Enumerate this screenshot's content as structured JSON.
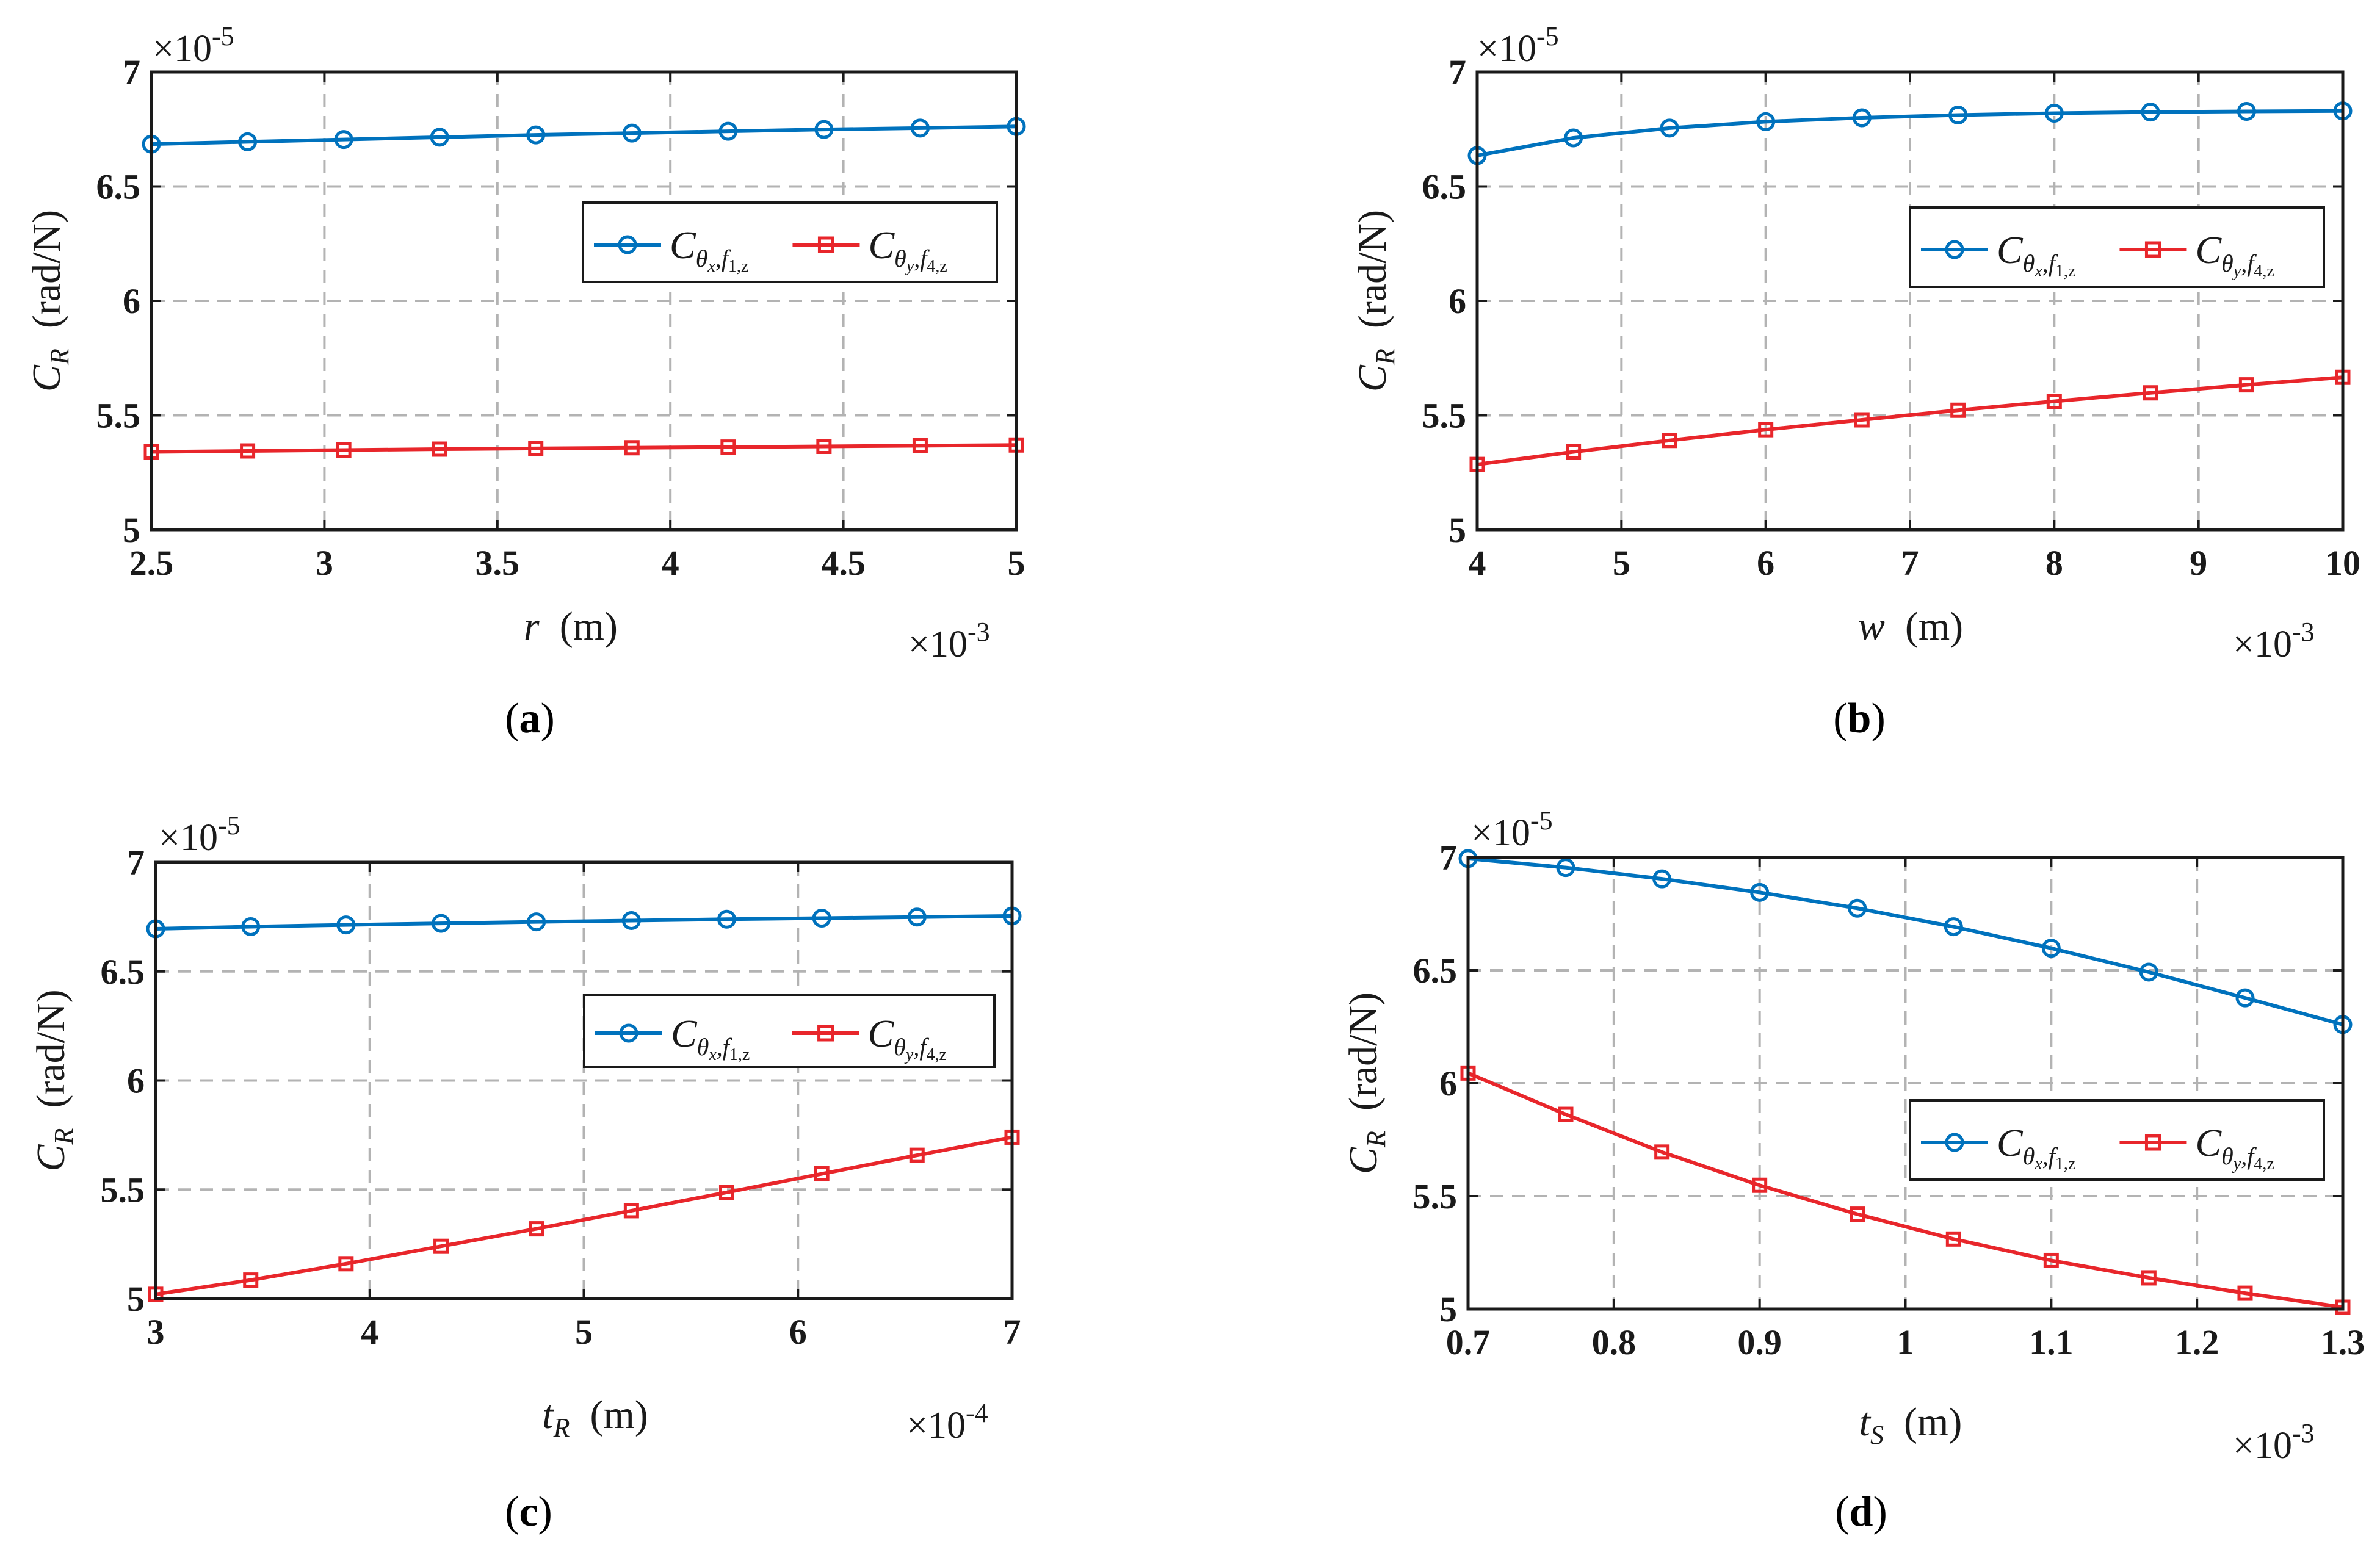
{
  "chart_data": [
    {
      "type": "line",
      "panel": "a",
      "caption_letter": "a",
      "xlabel_var": "r",
      "xlabel_unit": "(m)",
      "ylabel": "C",
      "ylabel_sub": "R",
      "ylabel_unit": "(rad/N)",
      "x_multiplier": "×10",
      "x_multiplier_exp": "-3",
      "y_multiplier": "×10",
      "y_multiplier_exp": "-5",
      "xlim": [
        2.5,
        5
      ],
      "ylim": [
        5,
        7
      ],
      "xticks": [
        2.5,
        3,
        3.5,
        4,
        4.5,
        5
      ],
      "xtick_labels": [
        "2.5",
        "3",
        "3.5",
        "4",
        "4.5",
        "5"
      ],
      "yticks": [
        5,
        5.5,
        6,
        6.5,
        7
      ],
      "ytick_labels": [
        "5",
        "5.5",
        "6",
        "6.5",
        "7"
      ],
      "grid": true,
      "legend_position": "center-right",
      "series": [
        {
          "name": "C_{θx,f1,z}",
          "color": "#0072BD",
          "marker": "circle",
          "x": [
            2.5,
            2.778,
            3.056,
            3.333,
            3.611,
            3.889,
            4.167,
            4.444,
            4.722,
            5.0
          ],
          "y": [
            6.685,
            6.695,
            6.705,
            6.715,
            6.725,
            6.733,
            6.741,
            6.749,
            6.755,
            6.762
          ]
        },
        {
          "name": "C_{θy,f4,z}",
          "color": "#E8262B",
          "marker": "square",
          "x": [
            2.5,
            2.778,
            3.056,
            3.333,
            3.611,
            3.889,
            4.167,
            4.444,
            4.722,
            5.0
          ],
          "y": [
            5.34,
            5.344,
            5.348,
            5.352,
            5.355,
            5.358,
            5.361,
            5.364,
            5.367,
            5.37
          ]
        }
      ]
    },
    {
      "type": "line",
      "panel": "b",
      "caption_letter": "b",
      "xlabel_var": "w",
      "xlabel_unit": "(m)",
      "ylabel": "C",
      "ylabel_sub": "R",
      "ylabel_unit": "(rad/N)",
      "x_multiplier": "×10",
      "x_multiplier_exp": "-3",
      "y_multiplier": "×10",
      "y_multiplier_exp": "-5",
      "xlim": [
        4,
        10
      ],
      "ylim": [
        5,
        7
      ],
      "xticks": [
        4,
        5,
        6,
        7,
        8,
        9,
        10
      ],
      "xtick_labels": [
        "4",
        "5",
        "6",
        "7",
        "8",
        "9",
        "10"
      ],
      "yticks": [
        5,
        5.5,
        6,
        6.5,
        7
      ],
      "ytick_labels": [
        "5",
        "5.5",
        "6",
        "6.5",
        "7"
      ],
      "grid": true,
      "legend_position": "center-right",
      "series": [
        {
          "name": "C_{θx,f1,z}",
          "color": "#0072BD",
          "marker": "circle",
          "x": [
            4,
            4.667,
            5.333,
            6.0,
            6.667,
            7.333,
            8.0,
            8.667,
            9.333,
            10.0
          ],
          "y": [
            6.635,
            6.712,
            6.755,
            6.783,
            6.8,
            6.812,
            6.82,
            6.825,
            6.828,
            6.83
          ]
        },
        {
          "name": "C_{θy,f4,z}",
          "color": "#E8262B",
          "marker": "square",
          "x": [
            4,
            4.667,
            5.333,
            6.0,
            6.667,
            7.333,
            8.0,
            8.667,
            9.333,
            10.0
          ],
          "y": [
            5.285,
            5.34,
            5.39,
            5.437,
            5.48,
            5.522,
            5.561,
            5.598,
            5.633,
            5.666
          ]
        }
      ]
    },
    {
      "type": "line",
      "panel": "c",
      "caption_letter": "c",
      "xlabel_var": "t",
      "xlabel_sub": "R",
      "xlabel_unit": "(m)",
      "ylabel": "C",
      "ylabel_sub": "R",
      "ylabel_unit": "(rad/N)",
      "x_multiplier": "×10",
      "x_multiplier_exp": "-4",
      "y_multiplier": "×10",
      "y_multiplier_exp": "-5",
      "xlim": [
        3,
        7
      ],
      "ylim": [
        5,
        7
      ],
      "xticks": [
        3,
        4,
        5,
        6,
        7
      ],
      "xtick_labels": [
        "3",
        "4",
        "5",
        "6",
        "7"
      ],
      "yticks": [
        5,
        5.5,
        6,
        6.5,
        7
      ],
      "ytick_labels": [
        "5",
        "5.5",
        "6",
        "6.5",
        "7"
      ],
      "grid": true,
      "legend_position": "center-right",
      "series": [
        {
          "name": "C_{θx,f1,z}",
          "color": "#0072BD",
          "marker": "circle",
          "x": [
            3.0,
            3.444,
            3.889,
            4.333,
            4.778,
            5.222,
            5.667,
            6.111,
            6.556,
            7.0
          ],
          "y": [
            6.695,
            6.705,
            6.713,
            6.72,
            6.727,
            6.733,
            6.739,
            6.744,
            6.749,
            6.754
          ]
        },
        {
          "name": "C_{θy,f4,z}",
          "color": "#E8262B",
          "marker": "square",
          "x": [
            3.0,
            3.444,
            3.889,
            4.333,
            4.778,
            5.222,
            5.667,
            6.111,
            6.556,
            7.0
          ],
          "y": [
            5.02,
            5.085,
            5.16,
            5.24,
            5.32,
            5.403,
            5.487,
            5.572,
            5.657,
            5.74
          ]
        }
      ]
    },
    {
      "type": "line",
      "panel": "d",
      "caption_letter": "d",
      "xlabel_var": "t",
      "xlabel_sub": "S",
      "xlabel_unit": "(m)",
      "ylabel": "C",
      "ylabel_sub": "R",
      "ylabel_unit": "(rad/N)",
      "x_multiplier": "×10",
      "x_multiplier_exp": "-3",
      "y_multiplier": "×10",
      "y_multiplier_exp": "-5",
      "xlim": [
        0.7,
        1.3
      ],
      "ylim": [
        5,
        7
      ],
      "xticks": [
        0.7,
        0.8,
        0.9,
        1.0,
        1.1,
        1.2,
        1.3
      ],
      "xtick_labels": [
        "0.7",
        "0.8",
        "0.9",
        "1",
        "1.1",
        "1.2",
        "1.3"
      ],
      "yticks": [
        5,
        5.5,
        6,
        6.5,
        7
      ],
      "ytick_labels": [
        "5",
        "5.5",
        "6",
        "6.5",
        "7"
      ],
      "grid": true,
      "legend_position": "center-right",
      "series": [
        {
          "name": "C_{θx,f1,z}",
          "color": "#0072BD",
          "marker": "circle",
          "x": [
            0.7,
            0.767,
            0.833,
            0.9,
            0.967,
            1.033,
            1.1,
            1.167,
            1.233,
            1.3
          ],
          "y": [
            6.995,
            6.955,
            6.905,
            6.845,
            6.775,
            6.693,
            6.598,
            6.492,
            6.378,
            6.26
          ]
        },
        {
          "name": "C_{θy,f4,z}",
          "color": "#E8262B",
          "marker": "square",
          "x": [
            0.7,
            0.767,
            0.833,
            0.9,
            0.967,
            1.033,
            1.1,
            1.167,
            1.233,
            1.3
          ],
          "y": [
            6.045,
            5.862,
            5.695,
            5.548,
            5.42,
            5.31,
            5.215,
            5.138,
            5.07,
            5.008
          ]
        }
      ]
    }
  ],
  "legend": {
    "series1": {
      "base": "C",
      "sub1": "θ",
      "sub1_sub": "x",
      "sub2": ",f",
      "sub2_sub": "1,z"
    },
    "series2": {
      "base": "C",
      "sub1": "θ",
      "sub1_sub": "y",
      "sub2": ",f",
      "sub2_sub": "4,z"
    }
  }
}
